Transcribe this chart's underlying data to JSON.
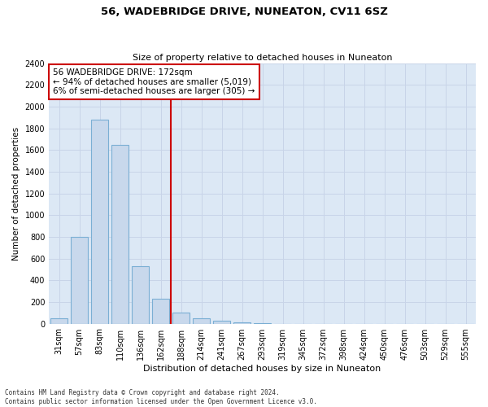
{
  "title": "56, WADEBRIDGE DRIVE, NUNEATON, CV11 6SZ",
  "subtitle": "Size of property relative to detached houses in Nuneaton",
  "xlabel": "Distribution of detached houses by size in Nuneaton",
  "ylabel": "Number of detached properties",
  "bar_labels": [
    "31sqm",
    "57sqm",
    "83sqm",
    "110sqm",
    "136sqm",
    "162sqm",
    "188sqm",
    "214sqm",
    "241sqm",
    "267sqm",
    "293sqm",
    "319sqm",
    "345sqm",
    "372sqm",
    "398sqm",
    "424sqm",
    "450sqm",
    "476sqm",
    "503sqm",
    "529sqm",
    "555sqm"
  ],
  "bar_values": [
    50,
    800,
    1880,
    1650,
    530,
    230,
    100,
    50,
    25,
    15,
    5,
    0,
    0,
    0,
    0,
    0,
    0,
    0,
    0,
    0,
    0
  ],
  "bar_color": "#c8d8ec",
  "bar_edge_color": "#7bafd4",
  "vline_x": 5.5,
  "vline_color": "#cc0000",
  "annotation_text": "56 WADEBRIDGE DRIVE: 172sqm\n← 94% of detached houses are smaller (5,019)\n6% of semi-detached houses are larger (305) →",
  "annotation_box_color": "#ffffff",
  "annotation_box_edge": "#cc0000",
  "ylim": [
    0,
    2400
  ],
  "yticks": [
    0,
    200,
    400,
    600,
    800,
    1000,
    1200,
    1400,
    1600,
    1800,
    2000,
    2200,
    2400
  ],
  "grid_color": "#c8d4e8",
  "background_color": "#dce8f5",
  "footer_line1": "Contains HM Land Registry data © Crown copyright and database right 2024.",
  "footer_line2": "Contains public sector information licensed under the Open Government Licence v3.0."
}
